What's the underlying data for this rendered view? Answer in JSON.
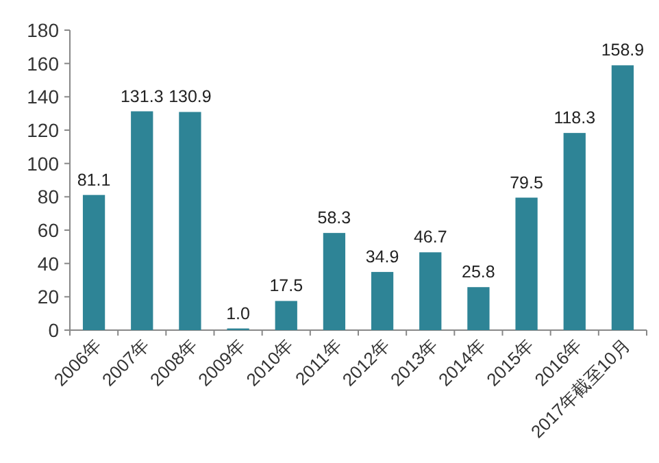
{
  "chart_data": {
    "type": "bar",
    "categories": [
      "2006年",
      "2007年",
      "2008年",
      "2009年",
      "2010年",
      "2011年",
      "2012年",
      "2013年",
      "2014年",
      "2015年",
      "2016年",
      "2017年截至10月"
    ],
    "values": [
      81.1,
      131.3,
      130.9,
      1.0,
      17.5,
      58.3,
      34.9,
      46.7,
      25.8,
      79.5,
      118.3,
      158.9
    ],
    "value_labels": [
      "81.1",
      "131.3",
      "130.9",
      "1.0",
      "17.5",
      "58.3",
      "34.9",
      "46.7",
      "25.8",
      "79.5",
      "118.3",
      "158.9"
    ],
    "color": "#2e8496",
    "ylim": [
      0,
      180
    ],
    "yticks": [
      0,
      20,
      40,
      60,
      80,
      100,
      120,
      140,
      160,
      180
    ]
  }
}
